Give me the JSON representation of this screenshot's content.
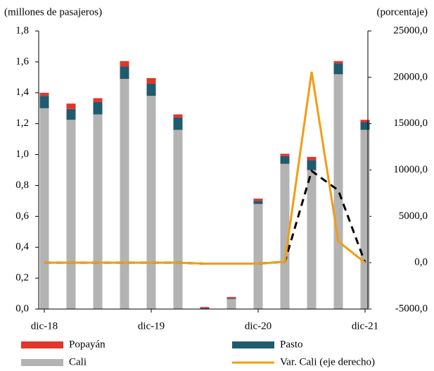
{
  "chart_data": {
    "type": "bar",
    "y_label": "(millones  de pasajeros)",
    "y2_label": "(porcentaje)",
    "categories": [
      "dic-18",
      null,
      null,
      null,
      "dic-19",
      null,
      null,
      null,
      "dic-20",
      null,
      null,
      null,
      "dic-21"
    ],
    "series": [
      {
        "name": "Cali",
        "color": "#b3b3b3",
        "values": [
          1.3,
          1.225,
          1.26,
          1.49,
          1.38,
          1.16,
          0,
          0.065,
          0.68,
          0.94,
          0.9,
          1.52,
          1.16
        ]
      },
      {
        "name": "Pasto",
        "color": "#1f5b6e",
        "values": [
          0.08,
          0.07,
          0.08,
          0.08,
          0.08,
          0.08,
          0.005,
          0.005,
          0.02,
          0.05,
          0.065,
          0.07,
          0.05
        ]
      },
      {
        "name": "Popayán",
        "color": "#e3352a",
        "values": [
          0.02,
          0.035,
          0.025,
          0.035,
          0.035,
          0.02,
          0.008,
          0.008,
          0.015,
          0.015,
          0.02,
          0.015,
          0.015
        ]
      },
      {
        "type": "line",
        "axis": "y2",
        "color": "#000000",
        "dashed": true,
        "values": [
          0,
          0,
          0,
          0,
          0,
          0,
          -100,
          -100,
          -100,
          100,
          9900,
          7800,
          0
        ]
      },
      {
        "name": "Var. Cali (eje derecho)",
        "type": "line",
        "axis": "y2",
        "color": "#f39c12",
        "values": [
          0,
          0,
          0,
          0,
          0,
          0,
          -100,
          -100,
          -100,
          100,
          20600,
          2300,
          0
        ]
      }
    ],
    "ylim": [
      0,
      1.8
    ],
    "yticks": [
      {
        "value": 0,
        "label": "0,0"
      },
      {
        "value": 0.2,
        "label": "0,2"
      },
      {
        "value": 0.4,
        "label": "0,4"
      },
      {
        "value": 0.6,
        "label": "0,6"
      },
      {
        "value": 0.8,
        "label": "0,8"
      },
      {
        "value": 1.0,
        "label": "1,0"
      },
      {
        "value": 1.2,
        "label": "1,2"
      },
      {
        "value": 1.4,
        "label": "1,4"
      },
      {
        "value": 1.6,
        "label": "1,6"
      },
      {
        "value": 1.8,
        "label": "1,8"
      }
    ],
    "y2lim": [
      -5000,
      25000
    ],
    "y2ticks": [
      {
        "value": -5000,
        "label": "-5000,0"
      },
      {
        "value": 0,
        "label": "0,0"
      },
      {
        "value": 5000,
        "label": "5000,0"
      },
      {
        "value": 10000,
        "label": "10000,0"
      },
      {
        "value": 15000,
        "label": "15000,0"
      },
      {
        "value": 20000,
        "label": "20000,0"
      },
      {
        "value": 25000,
        "label": "25000,0"
      }
    ],
    "legend": "bottom"
  }
}
